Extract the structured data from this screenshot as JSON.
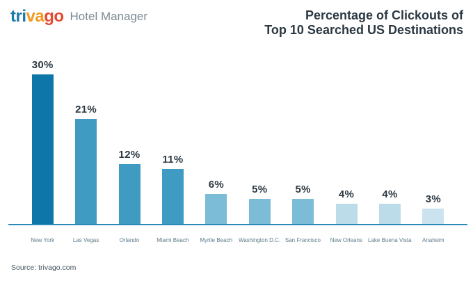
{
  "brand": {
    "logo_tri": "tri",
    "logo_va": "va",
    "logo_go": "go",
    "product": "Hotel Manager",
    "colors": {
      "tri": "#1b79a7",
      "va": "#f2991f",
      "go": "#e04b31",
      "product": "#7b8a94"
    }
  },
  "title": {
    "line1": "Percentage of Clickouts of",
    "line2": "Top 10 Searched US Destinations",
    "color": "#2b3842"
  },
  "chart_data": {
    "type": "bar",
    "title": "Percentage of Clickouts of Top 10 Searched US Destinations",
    "categories": [
      "New York",
      "Las Vegas",
      "Orlando",
      "Miami Beach",
      "Myrtle Beach",
      "Washington D.C.",
      "San Francisco",
      "New Orleans",
      "Lake Buena Vista",
      "Anaheim"
    ],
    "values": [
      30,
      21,
      12,
      11,
      6,
      5,
      5,
      4,
      4,
      3
    ],
    "value_labels": [
      "30%",
      "21%",
      "12%",
      "11%",
      "6%",
      "5%",
      "5%",
      "4%",
      "4%",
      "3%"
    ],
    "bar_colors": [
      "#0e76a8",
      "#3f9bc1",
      "#3f9bc1",
      "#3f9bc1",
      "#7cbcd6",
      "#7cbcd6",
      "#7cbcd6",
      "#bddcea",
      "#bddcea",
      "#cbe3ef"
    ],
    "unit": "%",
    "ylim": [
      0,
      32
    ],
    "grid": false,
    "legend": "none",
    "value_label_color": "#2b3842",
    "category_label_color": "#5f7d8c",
    "axis_color": "#2e8ab8"
  },
  "footer": {
    "source": "Source: trivago.com",
    "color": "#44545e"
  }
}
